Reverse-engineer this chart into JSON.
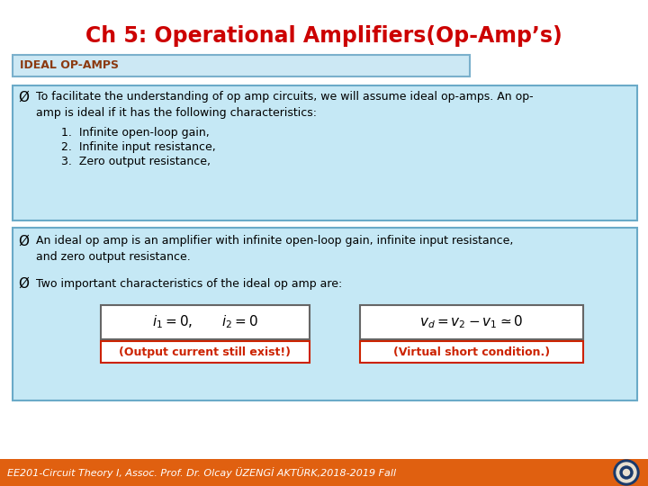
{
  "title": "Ch 5: Operational Amplifiers(Op-Amp’s)",
  "title_color": "#cc0000",
  "title_fontsize": 17,
  "bg_color": "#ffffff",
  "header_box_facecolor": "#cce8f4",
  "header_box_edgecolor": "#7ab0cc",
  "header_text": "IDEAL OP-AMPS",
  "header_text_color": "#8B3A10",
  "section1_bg": "#c5e8f5",
  "section1_border": "#6aaac8",
  "section1_bullet": "Ø",
  "section1_line1": "To facilitate the understanding of op amp circuits, we will assume ideal op-amps. An op-",
  "section1_line2": "amp is ideal if it has the following characteristics:",
  "section1_items": [
    "1.  Infinite open-loop gain,",
    "2.  Infinite input resistance,",
    "3.  Zero output resistance,"
  ],
  "section2_bg": "#c5e8f5",
  "section2_border": "#6aaac8",
  "section2_bullet": "Ø",
  "section2_line1": "An ideal op amp is an amplifier with infinite open-loop gain, infinite input resistance,",
  "section2_line2": "and zero output resistance.",
  "section3_bullet": "Ø",
  "section3_text": "Two important characteristics of the ideal op amp are:",
  "formula1": "$i_1 = 0, \\quad\\quad i_2 = 0$",
  "formula2": "$v_d = v_2 - v_1 \\simeq 0$",
  "label1": "(Output current still exist!)",
  "label2": "(Virtual short condition.)",
  "label_color": "#cc2200",
  "label_bg": "#ffffff",
  "label_border": "#cc2200",
  "formula_bg": "#ffffff",
  "formula_border": "#666666",
  "footer_bg": "#e06010",
  "footer_text": "EE201-Circuit Theory I, Assoc. Prof. Dr. Olcay ÜZENGİ AKTÜRK,2018-2019 Fall",
  "footer_color": "#ffffff",
  "footer_fontsize": 8
}
